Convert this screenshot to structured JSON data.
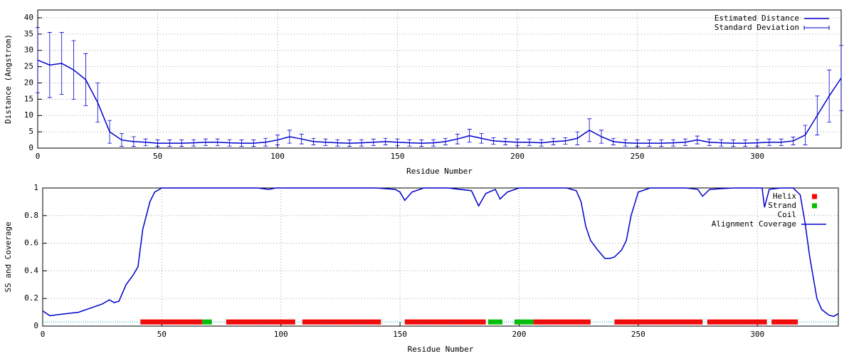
{
  "chart_data": [
    {
      "type": "line",
      "xlabel": "Residue Number",
      "ylabel": "Distance (Angstrom)",
      "xlim": [
        0,
        335
      ],
      "ylim": [
        0,
        42.4
      ],
      "xticks": [
        0,
        50,
        100,
        150,
        200,
        250,
        300
      ],
      "yticks": [
        0,
        5,
        10,
        15,
        20,
        25,
        30,
        35,
        40
      ],
      "grid": true,
      "x": [
        0,
        5,
        10,
        15,
        20,
        25,
        30,
        35,
        40,
        45,
        50,
        55,
        60,
        65,
        70,
        75,
        80,
        85,
        90,
        95,
        100,
        105,
        110,
        115,
        120,
        125,
        130,
        135,
        140,
        145,
        150,
        155,
        160,
        165,
        170,
        175,
        180,
        185,
        190,
        195,
        200,
        205,
        210,
        215,
        220,
        225,
        230,
        235,
        240,
        245,
        250,
        255,
        260,
        265,
        270,
        275,
        280,
        285,
        290,
        295,
        300,
        305,
        310,
        315,
        320,
        325,
        330,
        335
      ],
      "series": [
        {
          "name": "Estimated Distance",
          "color": "#0000cc",
          "error_name": "Standard Deviation",
          "values": [
            27,
            25.5,
            26,
            24,
            21,
            14,
            5,
            2.5,
            2,
            1.8,
            1.5,
            1.5,
            1.5,
            1.6,
            1.8,
            1.8,
            1.6,
            1.5,
            1.5,
            1.8,
            2.5,
            3.5,
            2.8,
            2,
            1.8,
            1.6,
            1.5,
            1.6,
            1.8,
            2,
            1.8,
            1.6,
            1.5,
            1.6,
            2,
            2.8,
            3.8,
            3,
            2.2,
            2,
            1.8,
            1.8,
            1.6,
            2,
            2.2,
            3,
            5.5,
            3.5,
            2,
            1.6,
            1.5,
            1.5,
            1.5,
            1.6,
            1.8,
            2.5,
            1.8,
            1.6,
            1.5,
            1.5,
            1.6,
            1.8,
            1.8,
            2.2,
            4,
            10,
            16,
            21.5
          ],
          "errors": [
            10,
            10,
            9.5,
            9,
            8,
            6,
            3.5,
            2,
            1.5,
            1,
            1,
            1,
            1,
            1,
            1,
            1,
            1,
            1,
            1,
            1.2,
            1.5,
            2,
            1.5,
            1,
            1,
            1,
            1,
            1,
            1,
            1,
            1,
            1,
            1,
            1,
            1,
            1.5,
            2,
            1.5,
            1,
            1,
            1,
            1,
            1,
            1,
            1,
            2,
            3.5,
            2,
            1,
            1,
            1,
            1,
            1,
            1,
            1,
            1.2,
            1,
            1,
            1,
            1,
            1,
            1,
            1,
            1.2,
            3,
            6,
            8,
            10
          ]
        }
      ]
    },
    {
      "type": "line",
      "xlabel": "Residue Number",
      "ylabel": "SS and Coverage",
      "xlim": [
        0,
        334
      ],
      "ylim": [
        0,
        1
      ],
      "xticks": [
        0,
        50,
        100,
        150,
        200,
        250,
        300
      ],
      "yticks": [
        0,
        0.2,
        0.4,
        0.6,
        0.8,
        1
      ],
      "grid": true,
      "ss_level": 0.03,
      "series": [
        {
          "name": "Helix",
          "color": "#ff0000",
          "ranges": [
            [
              41,
              67
            ],
            [
              77,
              106
            ],
            [
              109,
              142
            ],
            [
              152,
              186
            ],
            [
              206,
              230
            ],
            [
              240,
              277
            ],
            [
              279,
              304
            ],
            [
              306,
              317
            ]
          ]
        },
        {
          "name": "Strand",
          "color": "#00c000",
          "ranges": [
            [
              67,
              71
            ],
            [
              187,
              193
            ],
            [
              198,
              206
            ]
          ]
        },
        {
          "name": "Coil",
          "color": "#00a0a0"
        },
        {
          "name": "Alignment Coverage",
          "color": "#0000cc",
          "x": [
            0,
            3,
            5,
            10,
            15,
            20,
            25,
            28,
            30,
            32,
            35,
            38,
            40,
            42,
            45,
            47,
            50,
            60,
            70,
            80,
            90,
            95,
            98,
            100,
            110,
            120,
            140,
            148,
            150,
            152,
            155,
            160,
            170,
            180,
            183,
            186,
            190,
            192,
            195,
            200,
            210,
            220,
            224,
            226,
            228,
            230,
            233,
            236,
            238,
            240,
            243,
            245,
            247,
            250,
            255,
            270,
            275,
            277,
            280,
            290,
            300,
            302,
            303,
            305,
            310,
            315,
            318,
            320,
            322,
            325,
            327,
            330,
            332,
            334
          ],
          "values": [
            0.11,
            0.075,
            0.08,
            0.09,
            0.1,
            0.13,
            0.16,
            0.19,
            0.17,
            0.18,
            0.3,
            0.37,
            0.43,
            0.7,
            0.9,
            0.97,
            1,
            1,
            1,
            1,
            1,
            0.99,
            1,
            1,
            1,
            1,
            1,
            0.99,
            0.97,
            0.91,
            0.97,
            1,
            1,
            0.98,
            0.87,
            0.96,
            0.99,
            0.92,
            0.97,
            1,
            1,
            1,
            0.98,
            0.9,
            0.72,
            0.62,
            0.55,
            0.49,
            0.49,
            0.5,
            0.55,
            0.62,
            0.8,
            0.97,
            1,
            1,
            0.99,
            0.94,
            0.99,
            1,
            1,
            1,
            0.86,
            0.99,
            1,
            1,
            0.95,
            0.75,
            0.5,
            0.2,
            0.12,
            0.08,
            0.07,
            0.09
          ]
        }
      ]
    }
  ]
}
